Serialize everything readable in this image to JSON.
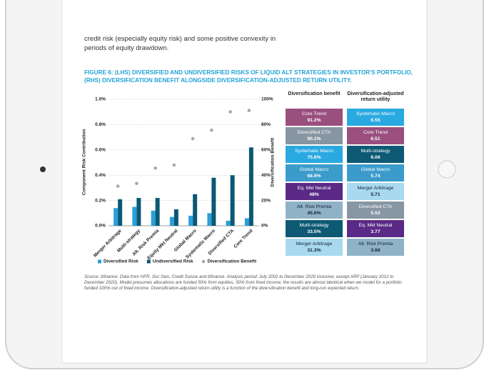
{
  "body_text": "credit risk (especially equity risk) and some positive convexity in periods of equity drawdown.",
  "caption": "FIGURE 6: (LHS) DIVERSIFIED AND UNDIVERSIFIED RISKS OF LIQUID ALT STRATEGIES IN INVESTOR'S PORTFOLIO, (RHS) DIVERSIFICATION BENEFIT ALONGSIDE DIVERSIFICATION-ADJUSTED RETURN UTILITY.",
  "chart_data": {
    "type": "bar",
    "ylabel": "Component Risk Contribution",
    "y2label": "Diversification Benefit",
    "categories": [
      "Merger Arbitrage",
      "Multi-strategy",
      "Alt. Risk Premia",
      "Equity Mkt Neutral",
      "Global Macro",
      "Systematic Macro",
      "Diversified CTA",
      "Core Trend"
    ],
    "series": [
      {
        "name": "Diversified Risk",
        "color": "#2b9fd8",
        "values": [
          0.14,
          0.15,
          0.12,
          0.07,
          0.08,
          0.1,
          0.04,
          0.06
        ]
      },
      {
        "name": "Undiversified Risk",
        "color": "#0b5876",
        "values": [
          0.21,
          0.22,
          0.22,
          0.13,
          0.25,
          0.38,
          0.4,
          0.62
        ]
      },
      {
        "name": "Diversification Benefit",
        "color": "#a8a8a8",
        "axis": "y2",
        "values": [
          31.3,
          33.5,
          45.6,
          48,
          68.9,
          75.6,
          90.1,
          91.2
        ]
      }
    ],
    "ylim": [
      0,
      1.0
    ],
    "yticks": [
      {
        "value": 0,
        "label": "0.0%"
      },
      {
        "value": 0.2,
        "label": "0.2%"
      },
      {
        "value": 0.4,
        "label": "0.4%"
      },
      {
        "value": 0.6,
        "label": "0.6%"
      },
      {
        "value": 0.8,
        "label": "0.8%"
      },
      {
        "value": 1.0,
        "label": "1.0%"
      }
    ],
    "y2lim": [
      0,
      100
    ],
    "y2ticks": [
      {
        "value": 0,
        "label": "0%"
      },
      {
        "value": 20,
        "label": "20%"
      },
      {
        "value": 40,
        "label": "40%"
      },
      {
        "value": 60,
        "label": "60%"
      },
      {
        "value": 80,
        "label": "80%"
      },
      {
        "value": 100,
        "label": "100%"
      }
    ],
    "grid": true,
    "legend": "bottom"
  },
  "table": {
    "header": [
      "Diversification benefit",
      "Diversification-adjusted return utility"
    ],
    "rows": [
      [
        {
          "name": "Core Trend",
          "value": "91.2%",
          "color": "#9a4f7f"
        },
        {
          "name": "Systematic Macro",
          "value": "6.55",
          "color": "#2aa9e1"
        }
      ],
      [
        {
          "name": "Diversified CTA",
          "value": "90.1%",
          "color": "#8796a2"
        },
        {
          "name": "Core Trend",
          "value": "6.51",
          "color": "#9a4f7f"
        }
      ],
      [
        {
          "name": "Systematic Macro",
          "value": "75.6%",
          "color": "#2aa9e1"
        },
        {
          "name": "Multi-strategy",
          "value": "6.06",
          "color": "#0e5a74"
        }
      ],
      [
        {
          "name": "Global Macro",
          "value": "68.9%",
          "color": "#3b9ccb"
        },
        {
          "name": "Global Macro",
          "value": "5.74",
          "color": "#3b9ccb"
        }
      ],
      [
        {
          "name": "Eq. Mkt Neutral",
          "value": "48%",
          "color": "#5a2a86"
        },
        {
          "name": "Merger Arbitrage",
          "value": "5.71",
          "color": "#a8d9ef"
        }
      ],
      [
        {
          "name": "Alt. Risk Premia",
          "value": "45.6%",
          "color": "#8fb2c7"
        },
        {
          "name": "Diversified CTA",
          "value": "5.53",
          "color": "#8796a2"
        }
      ],
      [
        {
          "name": "Multi-strategy",
          "value": "33.5%",
          "color": "#0e5a74"
        },
        {
          "name": "Eq. Mkt Neutral",
          "value": "3.77",
          "color": "#5a2a86"
        }
      ],
      [
        {
          "name": "Merger Arbitrage",
          "value": "31.3%",
          "color": "#a8d9ef"
        },
        {
          "name": "Alt. Risk Premia",
          "value": "3.66",
          "color": "#8fb2c7"
        }
      ]
    ]
  },
  "source": "Source: bfinance. Data from HFR, Soc Gen, Credit Suisse and bfinance. Analysis period: July 2002 to December 2020 inclusive, except ARP (January 2012 to December 2020). Model presumes allocations are funded 50% from equities, 50% from fixed income; the results are almost identical when we model for a portfolio funded 100% out of fixed income. Diversification-adjusted return utility is a function of the diversification benefit and long-run expected return."
}
